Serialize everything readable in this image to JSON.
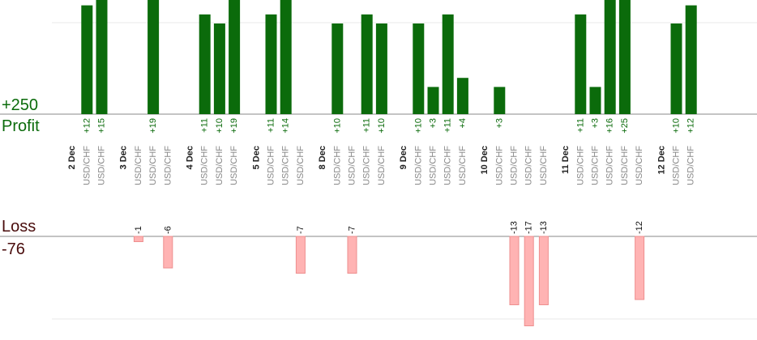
{
  "profit_label": "Profit",
  "profit_total": "+250",
  "loss_label": "Loss",
  "loss_total": "-76",
  "colors": {
    "profit_bar": "#0b6b0b",
    "profit_text": "#0b6b0b",
    "loss_bar": "#ffb3b3",
    "loss_bar_border": "#ee8f8f",
    "loss_label_text": "#4a0d0d",
    "pair_text": "#888888",
    "date_text": "#222222",
    "grid": "#e8e8e8",
    "axis": "#888888"
  },
  "chart_data": {
    "type": "bar",
    "pair": "USD/CHF",
    "profit_axis_max": 19,
    "loss_axis_min": -19,
    "days": [
      {
        "date": "2 Dec",
        "trades": [
          12,
          15
        ]
      },
      {
        "date": "3 Dec",
        "trades": [
          -1,
          19,
          -6
        ]
      },
      {
        "date": "4 Dec",
        "trades": [
          11,
          10,
          19
        ]
      },
      {
        "date": "5 Dec",
        "trades": [
          11,
          14,
          -7
        ]
      },
      {
        "date": "8 Dec",
        "trades": [
          10,
          -7,
          11,
          10
        ]
      },
      {
        "date": "9 Dec",
        "trades": [
          10,
          3,
          11,
          4
        ]
      },
      {
        "date": "10 Dec",
        "trades": [
          3,
          -13,
          -17,
          -13
        ]
      },
      {
        "date": "11 Dec",
        "trades": [
          11,
          3,
          16,
          25,
          -12
        ]
      },
      {
        "date": "12 Dec",
        "trades": [
          10,
          12
        ]
      }
    ]
  }
}
